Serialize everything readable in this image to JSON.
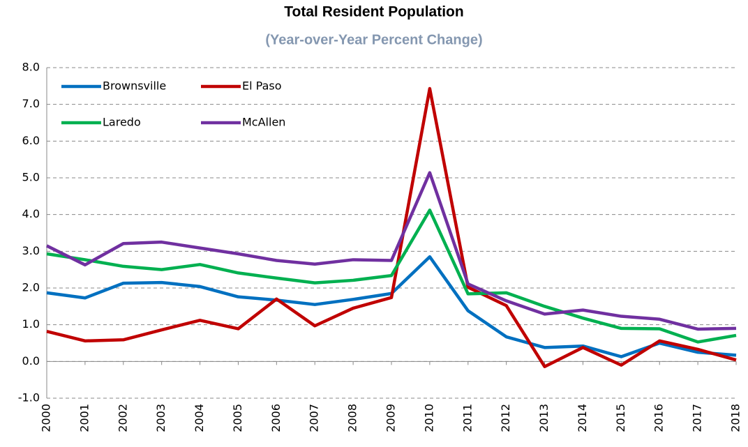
{
  "chart_data": {
    "type": "line",
    "title": "Total Resident Population",
    "subtitle": "(Year-over-Year Percent Change)",
    "categories": [
      "2000",
      "2001",
      "2002",
      "2003",
      "2004",
      "2005",
      "2006",
      "2007",
      "2008",
      "2009",
      "2010",
      "2011",
      "2012",
      "2013",
      "2014",
      "2015",
      "2016",
      "2017",
      "2018"
    ],
    "series": [
      {
        "name": "Brownsville",
        "color": "#0070c0",
        "values": [
          1.87,
          1.73,
          2.13,
          2.15,
          2.04,
          1.76,
          1.67,
          1.55,
          1.69,
          1.85,
          2.85,
          1.38,
          0.67,
          0.38,
          0.42,
          0.13,
          0.5,
          0.25,
          0.17
        ]
      },
      {
        "name": "El Paso",
        "color": "#c00000",
        "values": [
          0.82,
          0.56,
          0.59,
          0.86,
          1.12,
          0.89,
          1.7,
          0.97,
          1.45,
          1.74,
          7.43,
          2.02,
          1.52,
          -0.14,
          0.38,
          -0.1,
          0.56,
          0.33,
          0.04
        ]
      },
      {
        "name": "Laredo",
        "color": "#00b050",
        "values": [
          2.93,
          2.77,
          2.59,
          2.5,
          2.64,
          2.41,
          2.27,
          2.14,
          2.21,
          2.34,
          4.12,
          1.84,
          1.87,
          1.5,
          1.18,
          0.9,
          0.89,
          0.53,
          0.71
        ]
      },
      {
        "name": "McAllen",
        "color": "#7030a0",
        "values": [
          3.15,
          2.63,
          3.21,
          3.25,
          3.09,
          2.93,
          2.75,
          2.65,
          2.77,
          2.75,
          5.14,
          2.11,
          1.65,
          1.29,
          1.4,
          1.23,
          1.15,
          0.88,
          0.9
        ]
      }
    ],
    "ylim": [
      -1,
      8
    ],
    "yticks": [
      {
        "value": -1,
        "label": "-1.0"
      },
      {
        "value": 0,
        "label": "0.0"
      },
      {
        "value": 1,
        "label": "1.0"
      },
      {
        "value": 2,
        "label": "2.0"
      },
      {
        "value": 3,
        "label": "3.0"
      },
      {
        "value": 4,
        "label": "4.0"
      },
      {
        "value": 5,
        "label": "5.0"
      },
      {
        "value": 6,
        "label": "6.0"
      },
      {
        "value": 7,
        "label": "7.0"
      },
      {
        "value": 8,
        "label": "8.0"
      }
    ],
    "grid": true,
    "legend": "upper left"
  }
}
